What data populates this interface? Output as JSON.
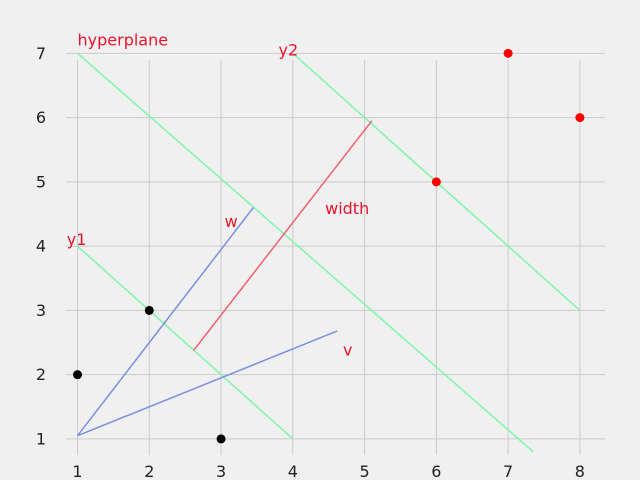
{
  "chart_data": {
    "type": "scatter",
    "title": "",
    "xlabel": "",
    "ylabel": "",
    "xlim": [
      0.7,
      8.35
    ],
    "ylim": [
      0.75,
      7.55
    ],
    "grid": true,
    "xticks": [
      1,
      2,
      3,
      4,
      5,
      6,
      7,
      8
    ],
    "yticks": [
      1,
      2,
      3,
      4,
      5,
      6,
      7
    ],
    "points": [
      {
        "x": 1,
        "y": 2,
        "color": "#000000"
      },
      {
        "x": 2,
        "y": 3,
        "color": "#000000"
      },
      {
        "x": 3,
        "y": 1,
        "color": "#000000"
      },
      {
        "x": 6,
        "y": 5,
        "color": "#ff0000"
      },
      {
        "x": 7,
        "y": 7,
        "color": "#ff0000"
      },
      {
        "x": 8,
        "y": 6,
        "color": "#ff0000"
      }
    ],
    "lines": [
      {
        "label": "hyperplane",
        "color": "#7ff5a8",
        "from": [
          1,
          7
        ],
        "to": [
          7.35,
          0.8
        ]
      },
      {
        "label": "y1",
        "color": "#7ff5a8",
        "from": [
          1,
          4
        ],
        "to": [
          4,
          1
        ]
      },
      {
        "label": "y2",
        "color": "#7ff5a8",
        "from": [
          4,
          7
        ],
        "to": [
          8,
          3
        ]
      },
      {
        "label": "width",
        "color": "#f0606e",
        "from": [
          2.62,
          2.38
        ],
        "to": [
          5.1,
          5.95
        ]
      },
      {
        "label": "w",
        "color": "#7b8ee0",
        "from": [
          1,
          1.05
        ],
        "to": [
          3.45,
          4.6
        ]
      },
      {
        "label": "v",
        "color": "#7b8ee0",
        "from": [
          1,
          1.05
        ],
        "to": [
          4.62,
          2.68
        ]
      }
    ],
    "annotations": [
      {
        "text": "hyperplane",
        "x": 1.0,
        "y": 7.12
      },
      {
        "text": "y2",
        "x": 3.8,
        "y": 6.97
      },
      {
        "text": "w",
        "x": 3.05,
        "y": 4.3
      },
      {
        "text": "width",
        "x": 4.45,
        "y": 4.5
      },
      {
        "text": "y1",
        "x": 0.85,
        "y": 4.02
      },
      {
        "text": "v",
        "x": 4.7,
        "y": 2.3
      }
    ]
  }
}
